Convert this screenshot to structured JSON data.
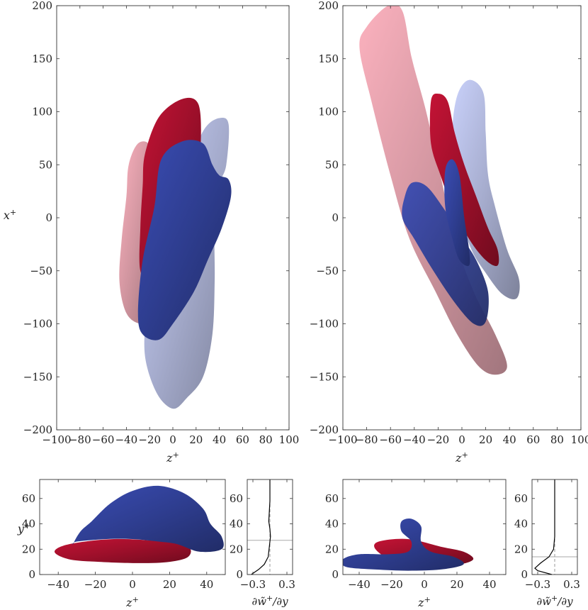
{
  "chart_data": [
    {
      "type": "contour",
      "panel": "top-left",
      "xlabel": "z+",
      "ylabel": "x+",
      "xlim": [
        -100,
        100
      ],
      "ylim": [
        -200,
        200
      ],
      "xticks": [
        -100,
        -80,
        -60,
        -40,
        -20,
        0,
        20,
        40,
        60,
        80,
        100
      ],
      "yticks": [
        -200,
        -150,
        -100,
        -50,
        0,
        50,
        100,
        150,
        200
      ],
      "shapes": [
        {
          "color": "#c9838f",
          "opacity": 0.85,
          "points": [
            [
              -30,
              70
            ],
            [
              -20,
              68
            ],
            [
              -18,
              40
            ],
            [
              -16,
              0
            ],
            [
              -18,
              -40
            ],
            [
              -20,
              -70
            ],
            [
              -18,
              -95
            ],
            [
              -28,
              -100
            ],
            [
              -40,
              -90
            ],
            [
              -46,
              -60
            ],
            [
              -44,
              -20
            ],
            [
              -40,
              20
            ],
            [
              -38,
              50
            ]
          ]
        },
        {
          "color": "#9ca3c8",
          "opacity": 0.9,
          "points": [
            [
              28,
              85
            ],
            [
              40,
              94
            ],
            [
              48,
              88
            ],
            [
              46,
              50
            ],
            [
              40,
              30
            ],
            [
              36,
              -10
            ],
            [
              36,
              -60
            ],
            [
              34,
              -110
            ],
            [
              26,
              -150
            ],
            [
              12,
              -170
            ],
            [
              0,
              -180
            ],
            [
              -14,
              -165
            ],
            [
              -24,
              -130
            ],
            [
              -22,
              -90
            ],
            [
              -10,
              -40
            ],
            [
              5,
              10
            ],
            [
              18,
              60
            ]
          ]
        },
        {
          "color": "#9c0f2a",
          "opacity": 1,
          "points": [
            [
              -12,
              95
            ],
            [
              8,
              112
            ],
            [
              22,
              107
            ],
            [
              24,
              70
            ],
            [
              20,
              40
            ],
            [
              12,
              10
            ],
            [
              6,
              -20
            ],
            [
              -2,
              -40
            ],
            [
              -10,
              -55
            ],
            [
              -18,
              -62
            ],
            [
              -28,
              -50
            ],
            [
              -28,
              -10
            ],
            [
              -26,
              30
            ],
            [
              -24,
              60
            ]
          ]
        },
        {
          "color": "#2e3d8f",
          "opacity": 1,
          "points": [
            [
              -10,
              55
            ],
            [
              8,
              72
            ],
            [
              26,
              70
            ],
            [
              34,
              50
            ],
            [
              40,
              40
            ],
            [
              48,
              36
            ],
            [
              50,
              20
            ],
            [
              42,
              -10
            ],
            [
              30,
              -40
            ],
            [
              18,
              -70
            ],
            [
              0,
              -100
            ],
            [
              -12,
              -115
            ],
            [
              -26,
              -110
            ],
            [
              -30,
              -90
            ],
            [
              -26,
              -40
            ],
            [
              -16,
              10
            ]
          ]
        }
      ]
    },
    {
      "type": "contour",
      "panel": "top-right",
      "xlabel": "z+",
      "ylabel": "",
      "xlim": [
        -100,
        100
      ],
      "ylim": [
        -200,
        200
      ],
      "xticks": [
        -100,
        -80,
        -60,
        -40,
        -20,
        0,
        20,
        40,
        60,
        80,
        100
      ],
      "yticks": [
        -200,
        -150,
        -100,
        -50,
        0,
        50,
        100,
        150,
        200
      ],
      "shapes": [
        {
          "color": "#c9838f",
          "opacity": 0.85,
          "points": [
            [
              -80,
              180
            ],
            [
              -62,
              200
            ],
            [
              -50,
              195
            ],
            [
              -42,
              150
            ],
            [
              -30,
              100
            ],
            [
              -18,
              40
            ],
            [
              -6,
              -20
            ],
            [
              10,
              -70
            ],
            [
              28,
              -110
            ],
            [
              38,
              -140
            ],
            [
              28,
              -148
            ],
            [
              14,
              -140
            ],
            [
              -4,
              -110
            ],
            [
              -22,
              -70
            ],
            [
              -44,
              -20
            ],
            [
              -60,
              40
            ],
            [
              -76,
              110
            ],
            [
              -86,
              160
            ]
          ]
        },
        {
          "color": "#9ca3c8",
          "opacity": 0.9,
          "points": [
            [
              -4,
              115
            ],
            [
              6,
              130
            ],
            [
              18,
              118
            ],
            [
              20,
              80
            ],
            [
              22,
              40
            ],
            [
              28,
              10
            ],
            [
              38,
              -30
            ],
            [
              48,
              -58
            ],
            [
              46,
              -76
            ],
            [
              34,
              -72
            ],
            [
              20,
              -52
            ],
            [
              8,
              -30
            ],
            [
              0,
              0
            ],
            [
              -4,
              40
            ],
            [
              -8,
              80
            ]
          ]
        },
        {
          "color": "#9c0f2a",
          "opacity": 1,
          "points": [
            [
              -26,
              110
            ],
            [
              -20,
              117
            ],
            [
              -12,
              110
            ],
            [
              -6,
              80
            ],
            [
              2,
              50
            ],
            [
              12,
              20
            ],
            [
              22,
              -10
            ],
            [
              30,
              -30
            ],
            [
              30,
              -45
            ],
            [
              20,
              -40
            ],
            [
              6,
              -20
            ],
            [
              -8,
              10
            ],
            [
              -18,
              40
            ],
            [
              -26,
              70
            ]
          ]
        },
        {
          "color": "#2e3d8f",
          "opacity": 0.95,
          "points": [
            [
              -48,
              20
            ],
            [
              -42,
              33
            ],
            [
              -30,
              30
            ],
            [
              -16,
              10
            ],
            [
              -2,
              -15
            ],
            [
              12,
              -40
            ],
            [
              22,
              -70
            ],
            [
              20,
              -98
            ],
            [
              10,
              -100
            ],
            [
              -6,
              -80
            ],
            [
              -24,
              -50
            ],
            [
              -40,
              -20
            ],
            [
              -50,
              0
            ]
          ]
        },
        {
          "color": "#2e3d8f",
          "opacity": 1,
          "points": [
            [
              -14,
              45
            ],
            [
              -8,
              55
            ],
            [
              -2,
              40
            ],
            [
              2,
              0
            ],
            [
              6,
              -30
            ],
            [
              6,
              -45
            ],
            [
              -2,
              -40
            ],
            [
              -8,
              -20
            ],
            [
              -14,
              10
            ]
          ]
        }
      ]
    },
    {
      "type": "contour",
      "panel": "bottom-left",
      "xlabel": "z+",
      "ylabel": "y+",
      "xlim": [
        -50,
        50
      ],
      "ylim": [
        0,
        75
      ],
      "xticks": [
        -40,
        -20,
        0,
        20,
        40
      ],
      "yticks": [
        0,
        20,
        40,
        60
      ],
      "shapes": [
        {
          "color": "#9c0f2a",
          "opacity": 1,
          "points": [
            [
              -42,
              18
            ],
            [
              -34,
              24
            ],
            [
              -10,
              28
            ],
            [
              16,
              26
            ],
            [
              30,
              22
            ],
            [
              30,
              14
            ],
            [
              20,
              10
            ],
            [
              4,
              9
            ],
            [
              -18,
              10
            ],
            [
              -34,
              12
            ]
          ]
        },
        {
          "color": "#2e3d8f",
          "opacity": 1,
          "points": [
            [
              -32,
              24
            ],
            [
              -28,
              34
            ],
            [
              -22,
              42
            ],
            [
              -12,
              56
            ],
            [
              0,
              66
            ],
            [
              14,
              70
            ],
            [
              28,
              64
            ],
            [
              38,
              52
            ],
            [
              42,
              40
            ],
            [
              48,
              30
            ],
            [
              48,
              20
            ],
            [
              36,
              18
            ],
            [
              24,
              24
            ],
            [
              14,
              26
            ],
            [
              0,
              28
            ],
            [
              -14,
              28
            ],
            [
              -30,
              26
            ]
          ]
        }
      ]
    },
    {
      "type": "line",
      "panel": "bottom-left-profile",
      "xlabel": "∂w̃+/∂y",
      "ylabel": "",
      "xlim": [
        -0.4,
        0.4
      ],
      "ylim": [
        0,
        75
      ],
      "xticks": [
        -0.3,
        0.3
      ],
      "yticks": [
        0,
        20,
        40,
        60
      ],
      "hline": 27,
      "series": [
        {
          "x": [
            -0.33,
            -0.2,
            -0.1,
            -0.03,
            -0.01,
            0.01,
            0.0,
            -0.02,
            -0.01,
            0.0,
            0.0
          ],
          "y": [
            0,
            4,
            8,
            14,
            22,
            30,
            36,
            42,
            50,
            58,
            75
          ]
        }
      ]
    },
    {
      "type": "contour",
      "panel": "bottom-right",
      "xlabel": "z+",
      "ylabel": "",
      "xlim": [
        -50,
        50
      ],
      "ylim": [
        0,
        75
      ],
      "xticks": [
        -40,
        -20,
        0,
        20,
        40
      ],
      "yticks": [
        0,
        20,
        40,
        60
      ],
      "shapes": [
        {
          "color": "#9c0f2a",
          "opacity": 1,
          "points": [
            [
              -30,
              20
            ],
            [
              -28,
              26
            ],
            [
              -10,
              28
            ],
            [
              10,
              22
            ],
            [
              24,
              18
            ],
            [
              30,
              12
            ],
            [
              20,
              8
            ],
            [
              0,
              10
            ],
            [
              -20,
              12
            ]
          ]
        },
        {
          "color": "#2e3d8f",
          "opacity": 1,
          "points": [
            [
              -50,
              12
            ],
            [
              -40,
              16
            ],
            [
              -22,
              16
            ],
            [
              -10,
              18
            ],
            [
              -8,
              26
            ],
            [
              -14,
              34
            ],
            [
              -14,
              42
            ],
            [
              -8,
              44
            ],
            [
              -2,
              38
            ],
            [
              -2,
              26
            ],
            [
              4,
              18
            ],
            [
              18,
              14
            ],
            [
              24,
              8
            ],
            [
              10,
              4
            ],
            [
              -10,
              3
            ],
            [
              -30,
              4
            ],
            [
              -48,
              6
            ]
          ]
        }
      ]
    },
    {
      "type": "line",
      "panel": "bottom-right-profile",
      "xlabel": "∂w̃+/∂y",
      "ylabel": "",
      "xlim": [
        -0.4,
        0.4
      ],
      "ylim": [
        0,
        75
      ],
      "xticks": [
        -0.3,
        0.3
      ],
      "yticks": [
        0,
        20,
        40,
        60
      ],
      "hline": 14,
      "series": [
        {
          "x": [
            -0.05,
            -0.3,
            -0.35,
            -0.25,
            -0.1,
            -0.02,
            0.0,
            0.0,
            0.0
          ],
          "y": [
            0,
            3,
            5,
            9,
            14,
            20,
            30,
            45,
            75
          ]
        }
      ]
    }
  ]
}
